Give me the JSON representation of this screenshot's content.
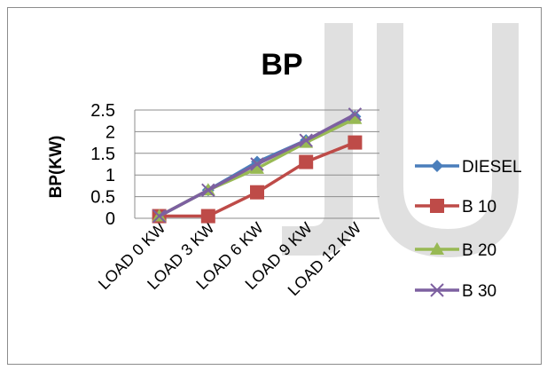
{
  "colors": {
    "diesel": "#4a7ebb",
    "b10": "#be4b48",
    "b20": "#98b954",
    "b30": "#7d60a0",
    "watermark": "#e0e0e0",
    "grid": "#8c8c8c"
  },
  "chart_data": {
    "type": "line",
    "title": "BP",
    "xlabel": "",
    "ylabel": "BP(KW)",
    "categories": [
      "LOAD 0 KW",
      "LOAD 3 KW",
      "LOAD 6 KW",
      "LOAD 9 KW",
      "LOAD 12 KW"
    ],
    "ylim": [
      0,
      2.5
    ],
    "yticks": [
      "0",
      "0.5",
      "1",
      "1.5",
      "2",
      "2.5"
    ],
    "grid": true,
    "legend_position": "right",
    "series": [
      {
        "name": "DIESEL",
        "marker": "diamond",
        "values": [
          0.05,
          0.65,
          1.3,
          1.8,
          2.35
        ]
      },
      {
        "name": "B 10",
        "marker": "square",
        "values": [
          0.05,
          0.05,
          0.6,
          1.3,
          1.75
        ]
      },
      {
        "name": "B 20",
        "marker": "triangle",
        "values": [
          0.05,
          0.65,
          1.15,
          1.75,
          2.3
        ]
      },
      {
        "name": "B 30",
        "marker": "x",
        "values": [
          0.05,
          0.65,
          1.25,
          1.8,
          2.4
        ]
      }
    ]
  }
}
